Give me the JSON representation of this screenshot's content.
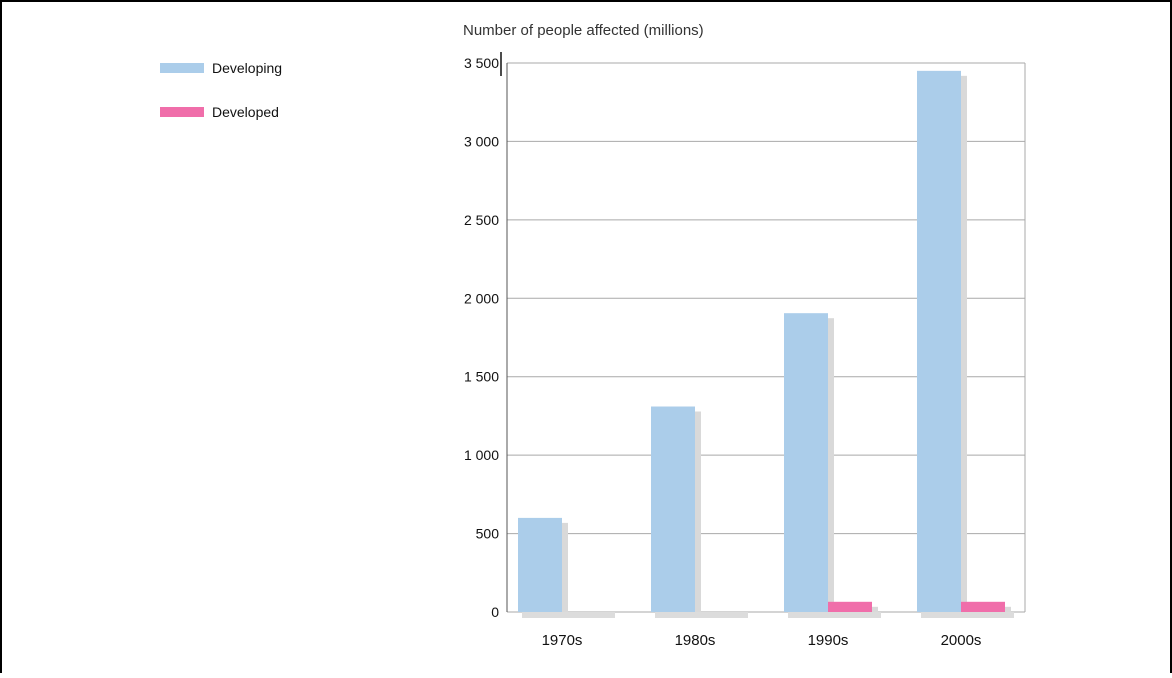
{
  "chart_data": {
    "type": "bar",
    "title": "",
    "ylabel": "Number of people affected (millions)",
    "xlabel": "",
    "ylim": [
      0,
      3500
    ],
    "yticks": [
      0,
      500,
      1000,
      1500,
      2000,
      2500,
      3000,
      3500
    ],
    "ytick_labels": [
      "0",
      "500",
      "1 000",
      "1 500",
      "2 000",
      "2 500",
      "3 000",
      "3 500"
    ],
    "categories": [
      "1970s",
      "1980s",
      "1990s",
      "2000s"
    ],
    "series": [
      {
        "name": "Developing",
        "color": "#abcdea",
        "values": [
          600,
          1310,
          1905,
          3450
        ]
      },
      {
        "name": "Developed",
        "color": "#f06eaa",
        "values": [
          0,
          0,
          65,
          65
        ]
      }
    ],
    "grid": true,
    "legend_position": "top-left"
  }
}
